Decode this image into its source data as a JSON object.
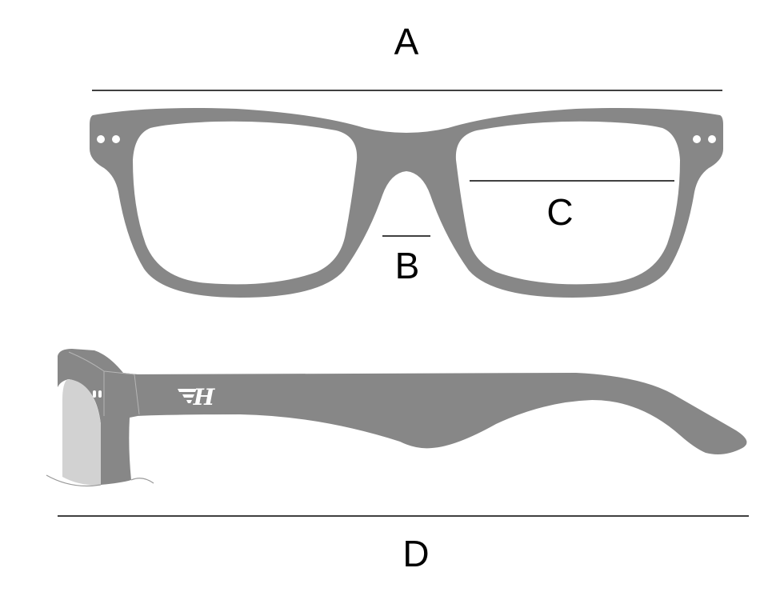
{
  "labels": {
    "a": "A",
    "b": "B",
    "c": "C",
    "d": "D"
  },
  "colors": {
    "frame": "#878787",
    "background": "#ffffff",
    "lines": "#000000",
    "glass": "#d2d2d2"
  },
  "logo": {
    "text": "H",
    "icon": "winged-h-logo-icon"
  }
}
